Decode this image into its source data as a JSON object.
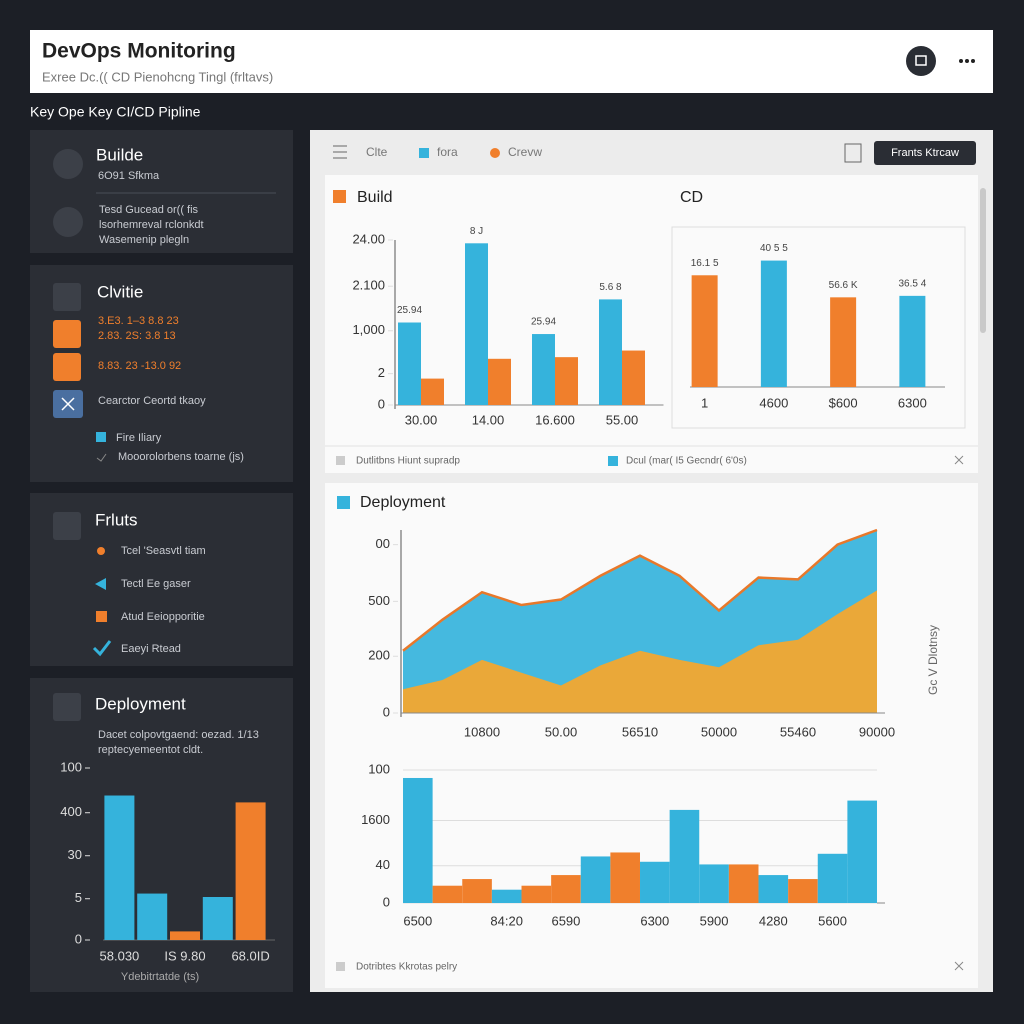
{
  "header": {
    "title": "DevOps Monitoring",
    "subtitle": "Exree Dc.(( CD Pienohcng Tingl (frltavs)"
  },
  "section_label": "Key Ope Key CI/CD Pipline",
  "sidebar": {
    "build": {
      "title": "Builde",
      "subtitle": "6O91 Sfkma",
      "lines": [
        "Tesd Gucead or(( fis",
        "lsorhemreval rclonkdt",
        "Wasemenip plegln"
      ]
    },
    "activity": {
      "title": "Clvitie",
      "items": [
        "3.E3. 1–3 8.8 23",
        "2.83. 2S: 3.8 13",
        "8.83. 23 -13.0 92",
        "Cearctor Ceortd tkaoy",
        "Fire Iliary",
        "Mooorolorbens toarne (js)"
      ]
    },
    "faults": {
      "title": "Frluts",
      "items": [
        "Tcel 'Seasvtl tiam",
        "Tectl Ee gaser",
        "Atud Eeiopporitie",
        "Eaeyi Rtead"
      ]
    },
    "deployment": {
      "title": "Deployment",
      "lines": [
        "Dacet colpovtgaend: oezad. 1/13",
        "reptecyemeentot cldt."
      ]
    }
  },
  "toolbar": {
    "legend": [
      "Clte",
      "fora",
      "Crevw"
    ],
    "button": "Frants Ktrcaw"
  },
  "build_footer": [
    "Dutlitbns Hiunt supradp",
    "Dcul (mar( I5 Gecndr( 6'0s)"
  ],
  "deployment_title": "Deployment",
  "deployment_footer": "Dotribtes Kkrotas pelry",
  "chart_data": [
    {
      "type": "bar",
      "title": "Build",
      "categories": [
        "30.00",
        "14.00",
        "16.600",
        "55.00"
      ],
      "series": [
        {
          "color": "#35b3dc",
          "values": [
            50,
            98,
            43,
            64
          ]
        },
        {
          "color": "#f07f2c",
          "values": [
            16,
            28,
            29,
            33
          ]
        }
      ],
      "annotations": [
        "25.94",
        "8 J",
        "25.94",
        "5.6 8"
      ],
      "ylim": [
        0,
        100
      ],
      "yticks": [
        0,
        {
          "value": 19,
          "label": "2"
        },
        {
          "value": 45,
          "label": "1,000"
        },
        {
          "value": 72,
          "label": "2.100"
        },
        {
          "value": 100,
          "label": "24.00"
        }
      ]
    },
    {
      "type": "bar",
      "title": "CD",
      "categories": [
        "1",
        "4600",
        "$600",
        "6300"
      ],
      "values": [
        76,
        86,
        61,
        62
      ],
      "colors": [
        "#f07f2c",
        "#35b3dc",
        "#f07f2c",
        "#35b3dc"
      ],
      "annotations": [
        "16.1 5",
        "40 5 5",
        "56.6 K",
        "36.5 4"
      ],
      "ylim": [
        0,
        100
      ]
    },
    {
      "type": "area",
      "y_label": "Gc V Dlotnsy",
      "categories": [
        null,
        null,
        "10800",
        null,
        "50.00",
        null,
        "56510",
        null,
        "50000",
        null,
        "55460",
        null,
        "90000"
      ],
      "series": [
        {
          "color": "#35b3dc",
          "line_color": "#e8782a",
          "values": [
            34,
            51,
            66,
            59,
            62,
            75,
            86,
            75,
            56,
            74,
            73,
            92,
            100
          ]
        },
        {
          "color": "#f8a62a",
          "values": [
            13,
            18,
            29,
            22,
            15,
            26,
            34,
            29,
            25,
            37,
            40,
            54,
            67
          ]
        }
      ],
      "ylim": [
        0,
        100
      ],
      "yticks": [
        0,
        {
          "value": 31,
          "label": "200"
        },
        {
          "value": 61,
          "label": "500"
        },
        {
          "value": 92,
          "label": "00"
        }
      ]
    },
    {
      "type": "bar",
      "categories": [
        "6500",
        null,
        null,
        "84:20",
        null,
        "6590",
        null,
        null,
        "6300",
        null,
        "5900",
        null,
        "4280",
        null,
        "5600",
        null
      ],
      "values": [
        94,
        13,
        18,
        10,
        13,
        21,
        35,
        38,
        31,
        70,
        29,
        29,
        21,
        18,
        37,
        77
      ],
      "colors": [
        "#35b3dc",
        "#f07f2c",
        "#f07f2c",
        "#35b3dc",
        "#f07f2c",
        "#f07f2c",
        "#35b3dc",
        "#f07f2c",
        "#35b3dc",
        "#35b3dc",
        "#35b3dc",
        "#f07f2c",
        "#35b3dc",
        "#f07f2c",
        "#35b3dc",
        "#35b3dc"
      ],
      "ylim": [
        0,
        100
      ],
      "yticks": [
        0,
        {
          "value": 28,
          "label": "40"
        },
        {
          "value": 62,
          "label": "1600"
        },
        100
      ],
      "grid": true
    },
    {
      "type": "bar",
      "x_label": "Ydebitrtatde (ts)",
      "categories": [
        "58.030",
        null,
        "IS 9.80",
        null,
        "68.0ID"
      ],
      "values": [
        84,
        27,
        5,
        25,
        80
      ],
      "colors": [
        "#35b3dc",
        "#35b3dc",
        "#f07f2c",
        "#35b3dc",
        "#f07f2c"
      ],
      "ylim": [
        0,
        100
      ],
      "yticks": [
        0,
        {
          "value": 24,
          "label": "5"
        },
        {
          "value": 49,
          "label": "30"
        },
        {
          "value": 74,
          "label": "400"
        },
        100
      ]
    }
  ]
}
